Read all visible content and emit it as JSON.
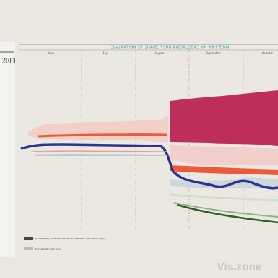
{
  "chart_data": {
    "type": "stream",
    "title": "EVALUATION OF SHARE YOUR KNOWLEDGE ON WIKIPEDIA",
    "year": "2011",
    "categories": [
      "June",
      "July",
      "August",
      "September",
      "October"
    ],
    "legend": [
      {
        "name": "Bytes added by m.Cannavo and Marcel (Wikipedia's tutors of the project)",
        "color": "#444444"
      },
      {
        "name": "Bytes added by other users",
        "color": "#bbbbbb"
      }
    ],
    "watermark": "Vis.zone"
  }
}
